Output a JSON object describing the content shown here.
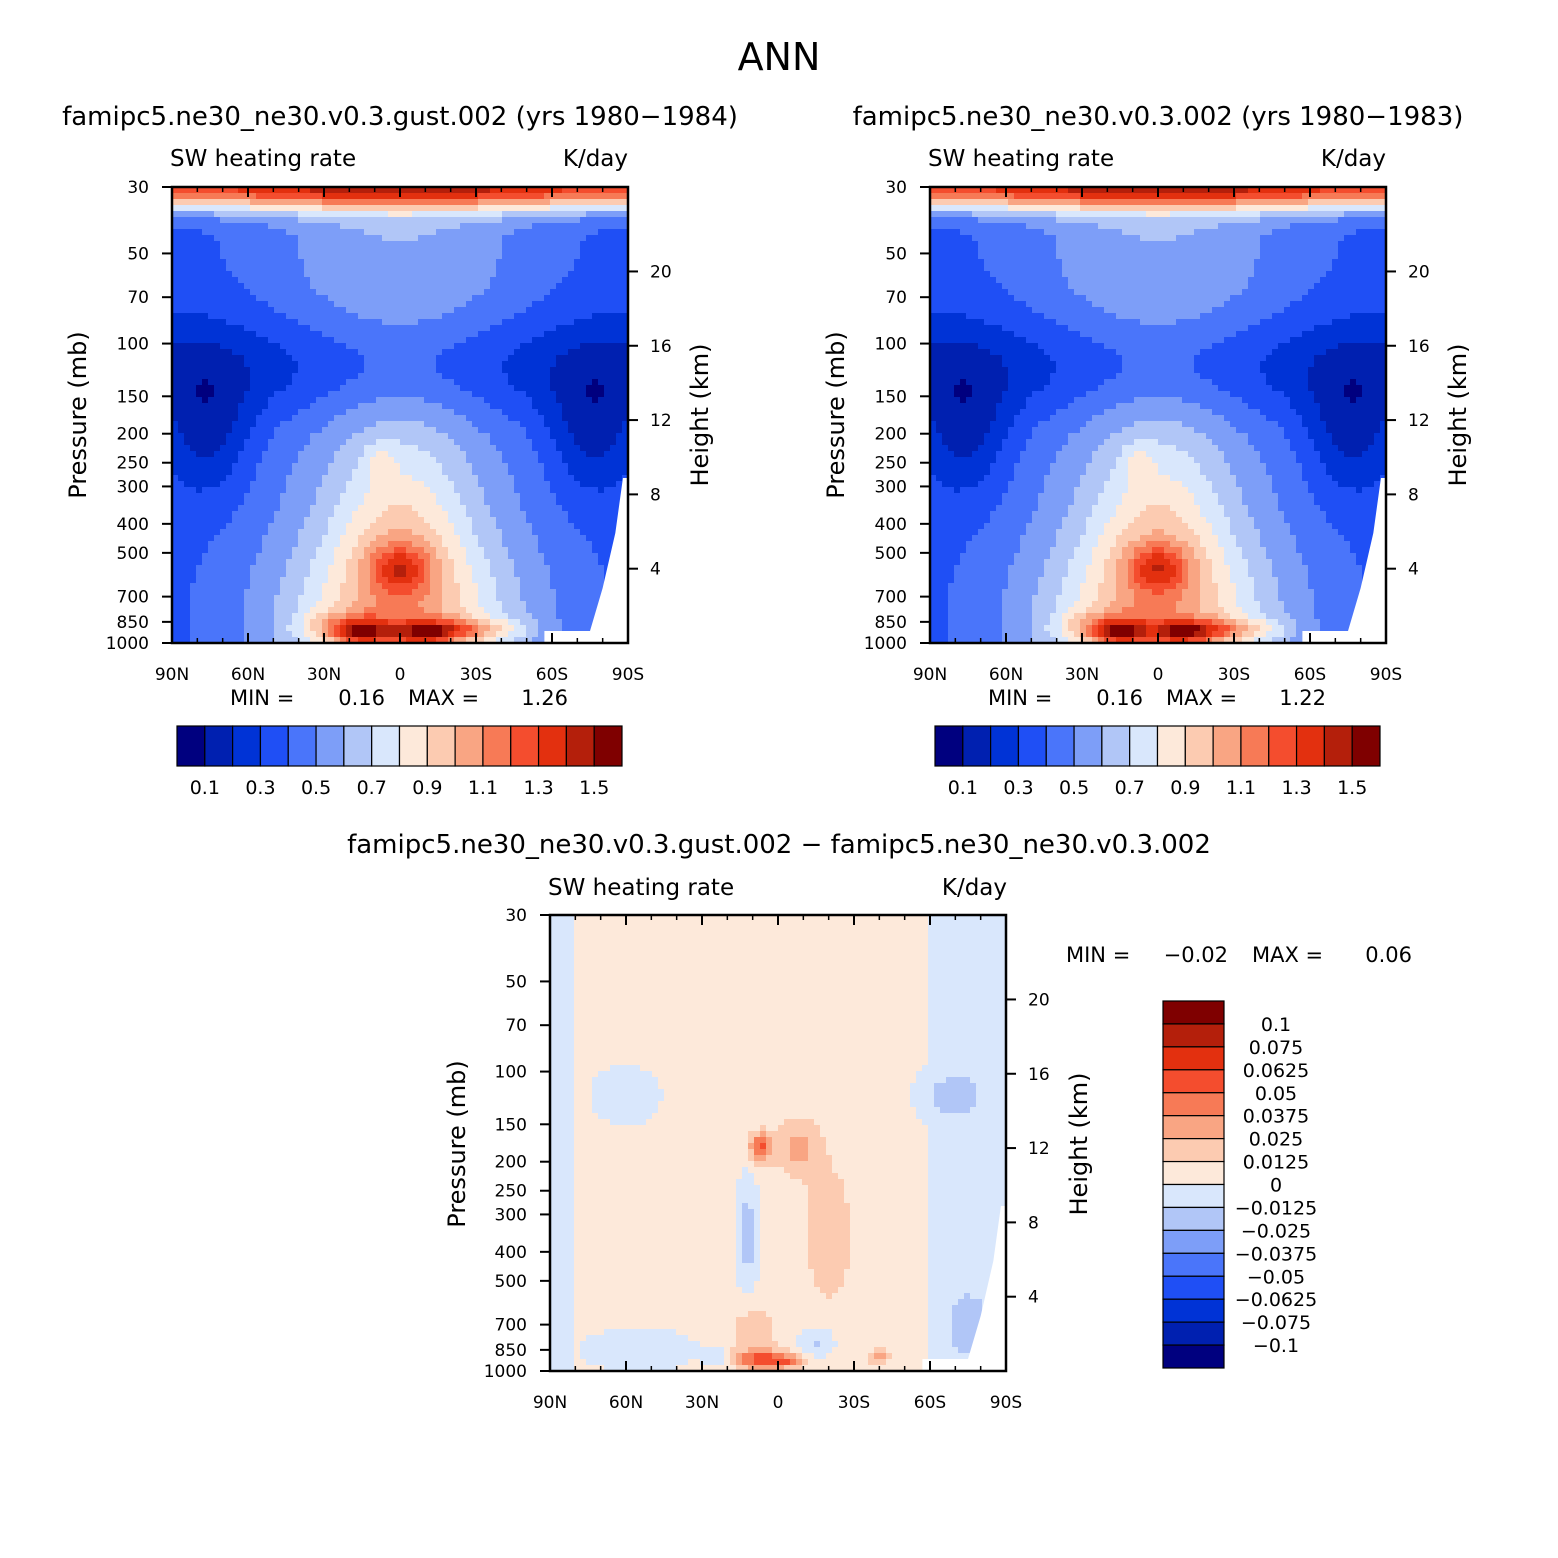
{
  "figure": {
    "season": "ANN",
    "diff_title": "famipc5.ne30_ne30.v0.3.gust.002 − famipc5.ne30_ne30.v0.3.002",
    "stat_min_label": "MIN =",
    "stat_max_label": "MAX ="
  },
  "chart_data": [
    {
      "type": "heatmap",
      "title": "famipc5.ne30_ne30.v0.3.gust.002 (yrs 1980−1984)",
      "variable": "SW heating rate",
      "units": "K/day",
      "ylabel": "Pressure (mb)",
      "ylabel_right": "Height (km)",
      "x_ticks": [
        "90N",
        "60N",
        "30N",
        "0",
        "30S",
        "60S",
        "90S"
      ],
      "y_ticks": [
        "30",
        "50",
        "70",
        "100",
        "150",
        "200",
        "250",
        "300",
        "400",
        "500",
        "700",
        "850",
        "1000"
      ],
      "height_ticks": [
        "20",
        "16",
        "12",
        "8",
        "4"
      ],
      "xlim": [
        90,
        -90
      ],
      "ylim": [
        1000,
        30
      ],
      "y_scale": "log",
      "min": "0.16",
      "max": "1.26",
      "colorbar_labels": [
        "0.1",
        "0.3",
        "0.5",
        "0.7",
        "0.9",
        "1.1",
        "1.3",
        "1.5"
      ],
      "levels": [
        0.0,
        0.1,
        0.2,
        0.3,
        0.4,
        0.5,
        0.6,
        0.7,
        0.8,
        0.9,
        1.0,
        1.1,
        1.2,
        1.3,
        1.4,
        1.5
      ],
      "features": [
        {
          "lat": -10,
          "p": 920,
          "sx": 9,
          "sy": 0.06,
          "a": 0.45
        },
        {
          "lat": -28,
          "p": 900,
          "sx": 15,
          "sy": 0.06,
          "a": 0.3
        },
        {
          "lat": 15,
          "p": 920,
          "sx": 7,
          "sy": 0.06,
          "a": 0.45
        },
        {
          "lat": 22,
          "p": 880,
          "sx": 12,
          "sy": 0.08,
          "a": 0.25
        },
        {
          "lat": 0,
          "p": 560,
          "sx": 8,
          "sy": 0.12,
          "a": 0.35
        },
        {
          "lat": 8,
          "p": 250,
          "sx": 4,
          "sy": 0.1,
          "a": 0.15
        }
      ]
    },
    {
      "type": "heatmap",
      "title": "famipc5.ne30_ne30.v0.3.002 (yrs 1980−1983)",
      "variable": "SW heating rate",
      "units": "K/day",
      "ylabel": "Pressure (mb)",
      "ylabel_right": "Height (km)",
      "x_ticks": [
        "90N",
        "60N",
        "30N",
        "0",
        "30S",
        "60S",
        "90S"
      ],
      "y_ticks": [
        "30",
        "50",
        "70",
        "100",
        "150",
        "200",
        "250",
        "300",
        "400",
        "500",
        "700",
        "850",
        "1000"
      ],
      "height_ticks": [
        "20",
        "16",
        "12",
        "8",
        "4"
      ],
      "xlim": [
        90,
        -90
      ],
      "ylim": [
        1000,
        30
      ],
      "y_scale": "log",
      "min": "0.16",
      "max": "1.22",
      "colorbar_labels": [
        "0.1",
        "0.3",
        "0.5",
        "0.7",
        "0.9",
        "1.1",
        "1.3",
        "1.5"
      ],
      "levels": [
        0.0,
        0.1,
        0.2,
        0.3,
        0.4,
        0.5,
        0.6,
        0.7,
        0.8,
        0.9,
        1.0,
        1.1,
        1.2,
        1.3,
        1.4,
        1.5
      ],
      "features": [
        {
          "lat": -10,
          "p": 920,
          "sx": 9,
          "sy": 0.06,
          "a": 0.42
        },
        {
          "lat": -28,
          "p": 900,
          "sx": 15,
          "sy": 0.06,
          "a": 0.3
        },
        {
          "lat": 15,
          "p": 920,
          "sx": 7,
          "sy": 0.06,
          "a": 0.42
        },
        {
          "lat": 22,
          "p": 880,
          "sx": 12,
          "sy": 0.08,
          "a": 0.25
        },
        {
          "lat": 0,
          "p": 560,
          "sx": 8,
          "sy": 0.12,
          "a": 0.33
        },
        {
          "lat": 8,
          "p": 250,
          "sx": 4,
          "sy": 0.1,
          "a": 0.15
        }
      ]
    },
    {
      "type": "heatmap",
      "title": "famipc5.ne30_ne30.v0.3.gust.002 − famipc5.ne30_ne30.v0.3.002",
      "variable": "SW heating rate",
      "units": "K/day",
      "ylabel": "Pressure (mb)",
      "ylabel_right": "Height (km)",
      "x_ticks": [
        "90N",
        "60N",
        "30N",
        "0",
        "30S",
        "60S",
        "90S"
      ],
      "y_ticks": [
        "30",
        "50",
        "70",
        "100",
        "150",
        "200",
        "250",
        "300",
        "400",
        "500",
        "700",
        "850",
        "1000"
      ],
      "height_ticks": [
        "20",
        "16",
        "12",
        "8",
        "4"
      ],
      "xlim": [
        90,
        -90
      ],
      "ylim": [
        1000,
        30
      ],
      "y_scale": "log",
      "min": "−0.02",
      "max": "0.06",
      "colorbar_labels": [
        "0.1",
        "0.075",
        "0.0625",
        "0.05",
        "0.0375",
        "0.025",
        "0.0125",
        "0",
        "−0.0125",
        "−0.025",
        "−0.0375",
        "−0.05",
        "−0.0625",
        "−0.075",
        "−0.1"
      ],
      "levels": [
        -0.1,
        -0.075,
        -0.0625,
        -0.05,
        -0.0375,
        -0.025,
        -0.0125,
        0,
        0.0125,
        0.025,
        0.0375,
        0.05,
        0.0625,
        0.075,
        0.1
      ],
      "features": [
        {
          "lat": 5,
          "p": 920,
          "sx": 8,
          "sy": 0.05,
          "a": 0.05
        },
        {
          "lat": -5,
          "p": 930,
          "sx": 4,
          "sy": 0.03,
          "a": 0.02
        },
        {
          "lat": 7,
          "p": 180,
          "sx": 3,
          "sy": 0.08,
          "a": 0.05
        },
        {
          "lat": -8,
          "p": 180,
          "sx": 6,
          "sy": 0.15,
          "a": 0.025
        },
        {
          "lat": -20,
          "p": 350,
          "sx": 6,
          "sy": 0.35,
          "a": 0.02
        },
        {
          "lat": 10,
          "p": 750,
          "sx": 6,
          "sy": 0.15,
          "a": 0.02
        },
        {
          "lat": 12,
          "p": 350,
          "sx": 3,
          "sy": 0.3,
          "a": -0.025
        },
        {
          "lat": -15,
          "p": 800,
          "sx": 5,
          "sy": 0.08,
          "a": -0.02
        },
        {
          "lat": 25,
          "p": 900,
          "sx": 3,
          "sy": 0.05,
          "a": -0.015
        },
        {
          "lat": -40,
          "p": 900,
          "sx": 3,
          "sy": 0.04,
          "a": 0.025
        }
      ],
      "base_positive_lat": [
        -60,
        80
      ],
      "negative_regions": [
        {
          "lat": 60,
          "p": 120,
          "sx": 12,
          "sy": 0.2
        },
        {
          "lat": -70,
          "p": 120,
          "sx": 15,
          "sy": 0.25
        },
        {
          "lat": -75,
          "p": 700,
          "sx": 12,
          "sy": 0.4
        },
        {
          "lat": 55,
          "p": 850,
          "sx": 20,
          "sy": 0.15
        }
      ]
    }
  ]
}
